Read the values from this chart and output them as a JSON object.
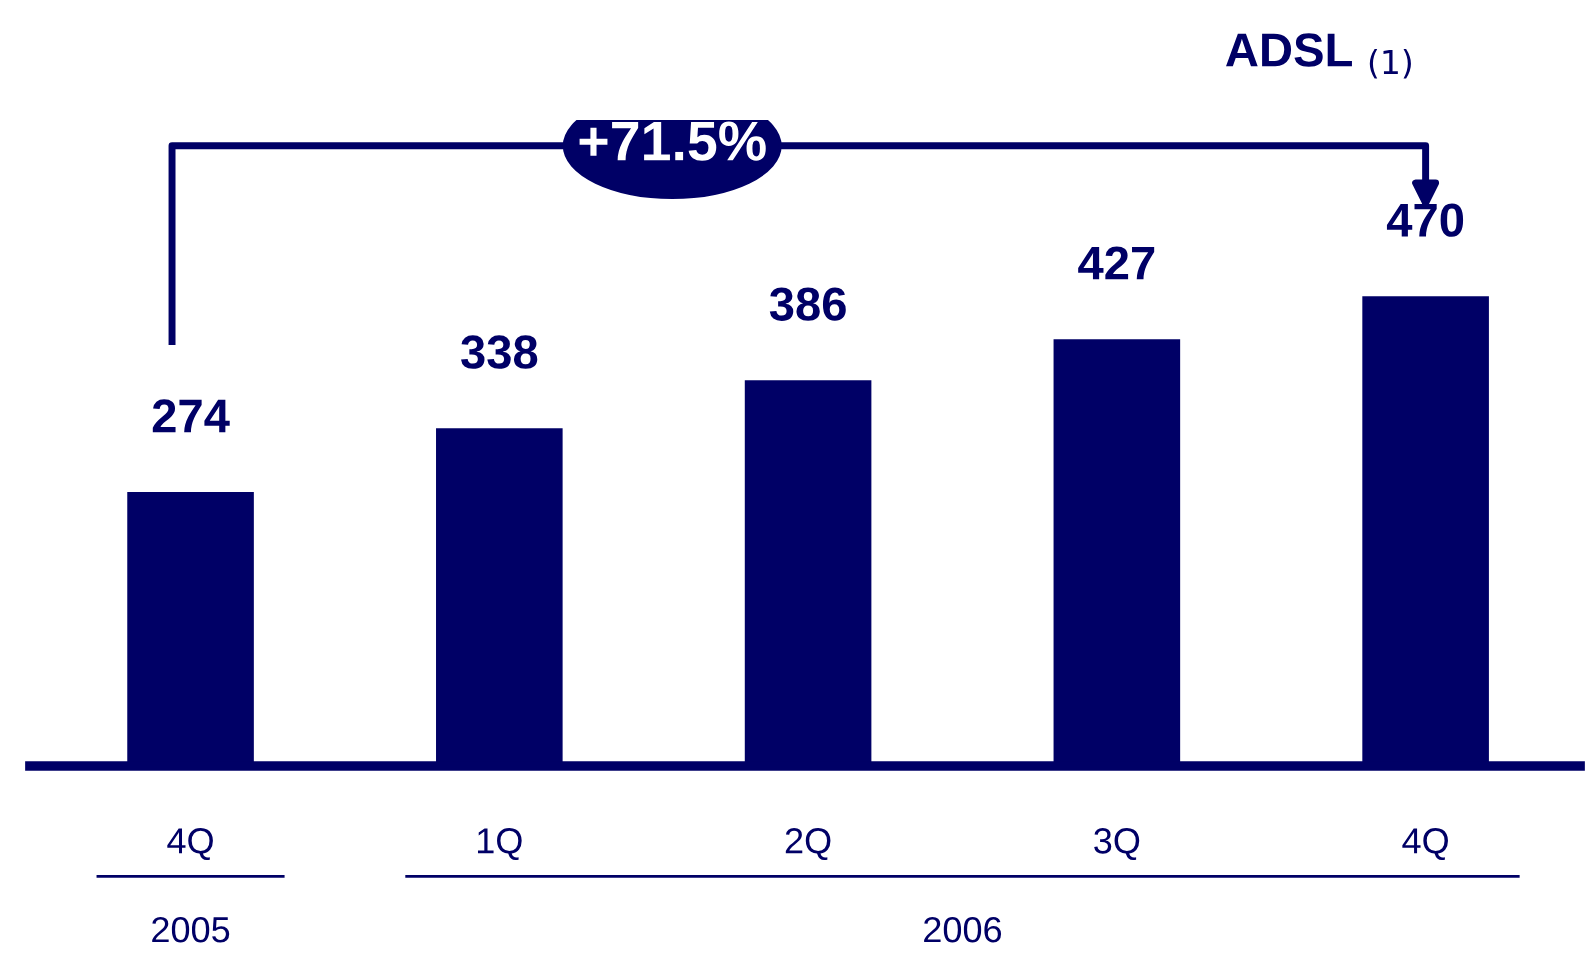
{
  "chart_data": {
    "type": "bar",
    "title": "ADSL $_{(1)}$",
    "categories": [
      "4Q",
      "1Q",
      "2Q",
      "3Q",
      "4Q"
    ],
    "values": [
      274,
      338,
      386,
      427,
      470
    ],
    "color": "#000066",
    "data_labels": true,
    "grid": false,
    "annotations": [
      "+71.5%",
      "2005",
      "2006"
    ]
  }
}
